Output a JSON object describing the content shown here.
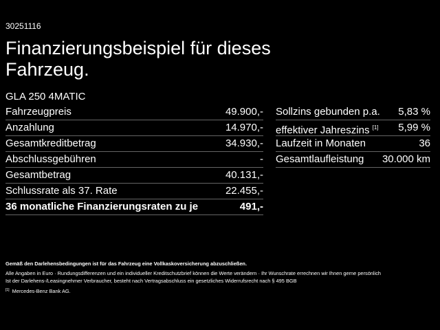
{
  "header": {
    "code": "30251116",
    "title": "Finanzierungsbeispiel für dieses Fahrzeug.",
    "model": "GLA 250 4MATIC"
  },
  "left_table": {
    "rows": [
      [
        "Fahrzeugpreis",
        "49.900,-"
      ],
      [
        "Anzahlung",
        "14.970,-"
      ],
      [
        "Gesamtkreditbetrag",
        "34.930,-"
      ],
      [
        "Abschlussgebühren",
        "-"
      ],
      [
        "Gesamtbetrag",
        "40.131,-"
      ],
      [
        "Schlussrate als 37. Rate",
        "22.455,-"
      ],
      [
        "36 monatliche Finanzierungsraten zu je",
        "491,-"
      ]
    ]
  },
  "right_table": {
    "rows": [
      [
        "Sollzins gebunden p.a.",
        "5,83 %"
      ],
      [
        "effektiver Jahreszins",
        "5,99 %",
        "[1]"
      ],
      [
        "Laufzeit in Monaten",
        "36"
      ],
      [
        "Gesamtlaufleistung",
        "30.000 km"
      ]
    ]
  },
  "footer": {
    "notice": "Gemäß den Darlehensbedingungen ist für das Fahrzeug eine Vollkaskoversicherung abzuschließen.",
    "line1": "Alle Angaben in Euro · Rundungsdifferenzen und ein individueller Kreditschutzbrief können die Werte verändern · Ihr Wunschrate errechnen wir Ihnen gerne persönlich",
    "line2": "Ist der Darlehens-/Leasingnehmer Verbraucher, besteht nach Vertragsabschluss ein gesetzliches Widerrufsrecht nach § 495 BGB",
    "footnote_mark": "[1]",
    "footnote": "Mercedes-Benz Bank AG."
  }
}
